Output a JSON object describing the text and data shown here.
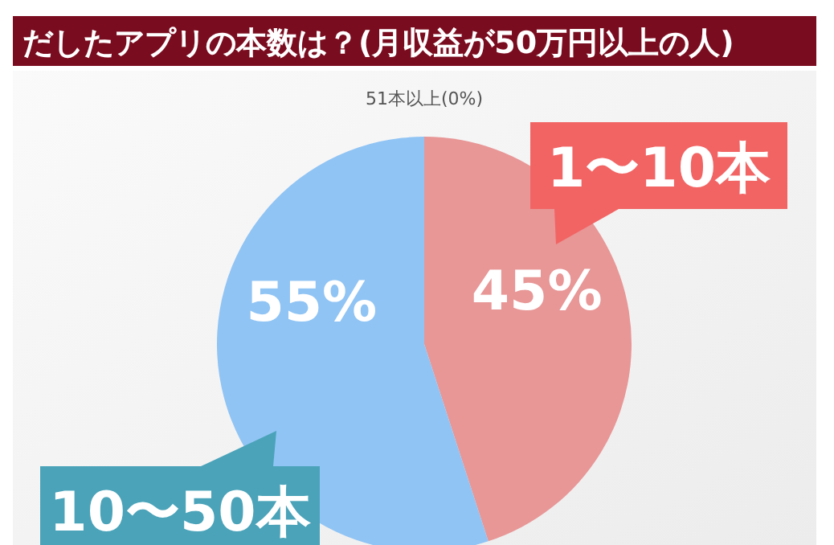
{
  "chart_data": {
    "type": "pie",
    "title": "だしたアプリの本数は？(月収益が50万円以上の人)",
    "categories": [
      "1〜10本",
      "10〜50本",
      "51本以上"
    ],
    "values": [
      45,
      55,
      0
    ],
    "colors": [
      "#e89696",
      "#90c4f4",
      "#cccccc"
    ],
    "value_labels": [
      "45%",
      "55%",
      "(0%)"
    ]
  }
}
